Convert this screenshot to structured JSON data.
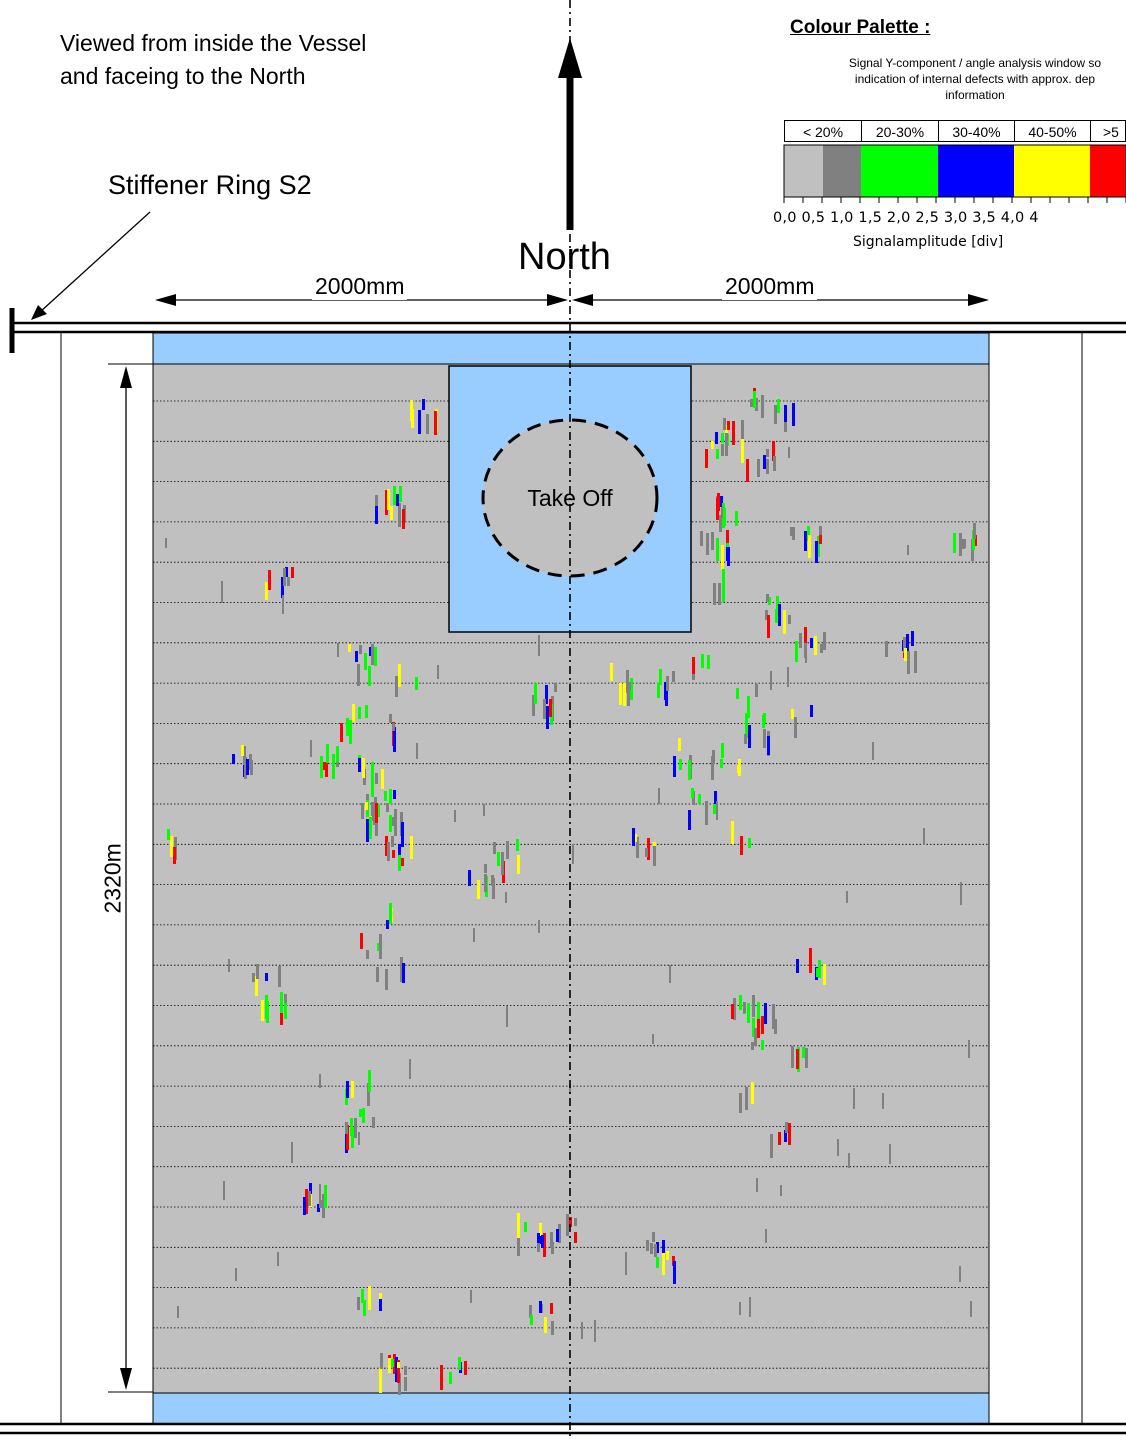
{
  "orientation_note": [
    "Viewed from inside the Vessel",
    "and faceing to the North"
  ],
  "stiffener_ring_label": "Stiffener Ring S2",
  "north_label": "North",
  "dimensions": {
    "left_width": "2000mm",
    "right_width": "2000mm",
    "height": "2320m"
  },
  "take_off_label": "Take Off",
  "palette": {
    "title": "Colour Palette :",
    "description_lines": [
      "Signal Y-component / angle analysis window so",
      "indication of internal defects with approx. dep",
      "information"
    ],
    "categories": [
      "< 20%",
      "20-30%",
      "30-40%",
      "40-50%",
      ">5"
    ],
    "colors": [
      "#c0c0c0",
      "#808080",
      "#00ff00",
      "#0000ff",
      "#ffff00",
      "#ff0000"
    ],
    "x_ticks": "0,0 0,5 1,0 1,5 2,0 2,5 3,0 3,5 4,0 4",
    "axis_label": "Signalamplitude [div]"
  },
  "colors": {
    "scan_background": "#c0c0c0",
    "plate_area": "#99ccff",
    "indication_dark": "#808080"
  }
}
